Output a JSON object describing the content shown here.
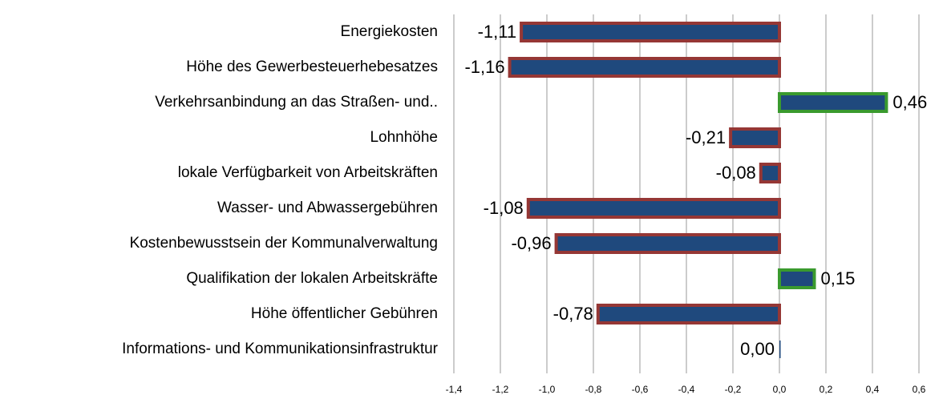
{
  "chart_data": {
    "type": "hbar",
    "categories": [
      "Energiekosten",
      "Höhe des Gewerbesteuerhebesatzes",
      "Verkehrsanbindung an das Straßen- und..",
      "Lohnhöhe",
      "lokale Verfügbarkeit von Arbeitskräften",
      "Wasser- und Abwassergebühren",
      "Kostenbewusstsein der Kommunalverwaltung",
      "Qualifikation der lokalen Arbeitskräfte",
      "Höhe öffentlicher Gebühren",
      "Informations- und Kommunikationsinfrastruktur"
    ],
    "values": [
      -1.11,
      -1.16,
      0.46,
      -0.21,
      -0.08,
      -1.08,
      -0.96,
      0.15,
      -0.78,
      0.0
    ],
    "value_labels": [
      "-1,11",
      "-1,16",
      "0,46",
      "-0,21",
      "-0,08",
      "-1,08",
      "-0,96",
      "0,15",
      "-0,78",
      "0,00"
    ],
    "color": "#1f497d",
    "negative_outline_color": "#953735",
    "positive_outline_color": "#3a9a2e",
    "xlim": [
      -1.4,
      0.6
    ],
    "xticks": [
      {
        "value": -1.4,
        "label": "-1,4"
      },
      {
        "value": -1.2,
        "label": "-1,2"
      },
      {
        "value": -1.0,
        "label": "-1,0"
      },
      {
        "value": -0.8,
        "label": "-0,8"
      },
      {
        "value": -0.6,
        "label": "-0,6"
      },
      {
        "value": -0.4,
        "label": "-0,4"
      },
      {
        "value": -0.2,
        "label": "-0,2"
      },
      {
        "value": 0.0,
        "label": "0,0"
      },
      {
        "value": 0.2,
        "label": "0,2"
      },
      {
        "value": 0.4,
        "label": "0,4"
      },
      {
        "value": 0.6,
        "label": "0,6"
      }
    ],
    "grid": true
  }
}
